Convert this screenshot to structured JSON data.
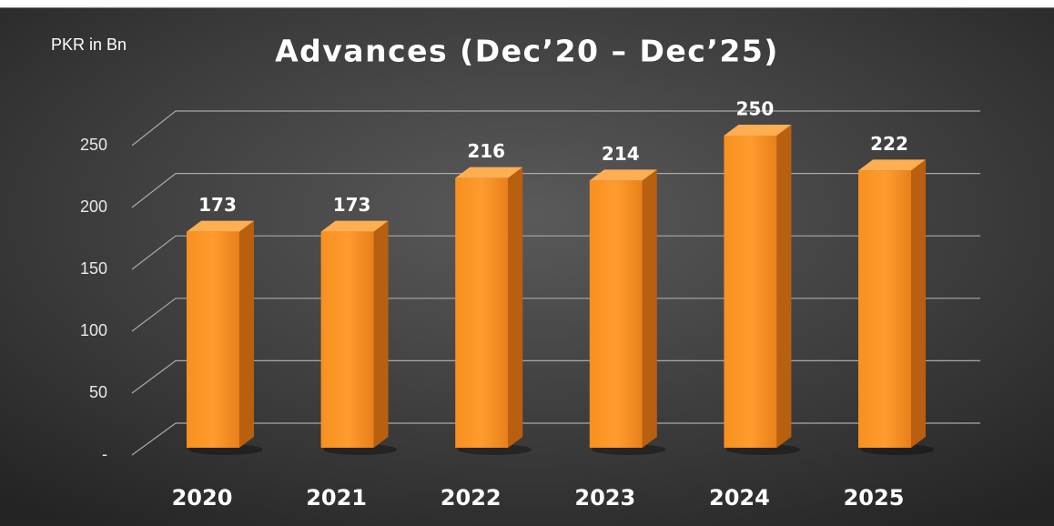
{
  "chart_data": {
    "type": "bar3d",
    "title": "Advances (Dec’20 – Dec’25)",
    "y_axis_label": "PKR in Bn",
    "categories": [
      "2020",
      "2021",
      "2022",
      "2023",
      "2024",
      "2025"
    ],
    "values": [
      173,
      173,
      216,
      214,
      250,
      222
    ],
    "color": "#f7901e",
    "ylim": [
      0,
      250
    ],
    "yticks": [
      {
        "value": 0,
        "label": "-"
      },
      50,
      100,
      150,
      200,
      250
    ],
    "grid": true
  }
}
